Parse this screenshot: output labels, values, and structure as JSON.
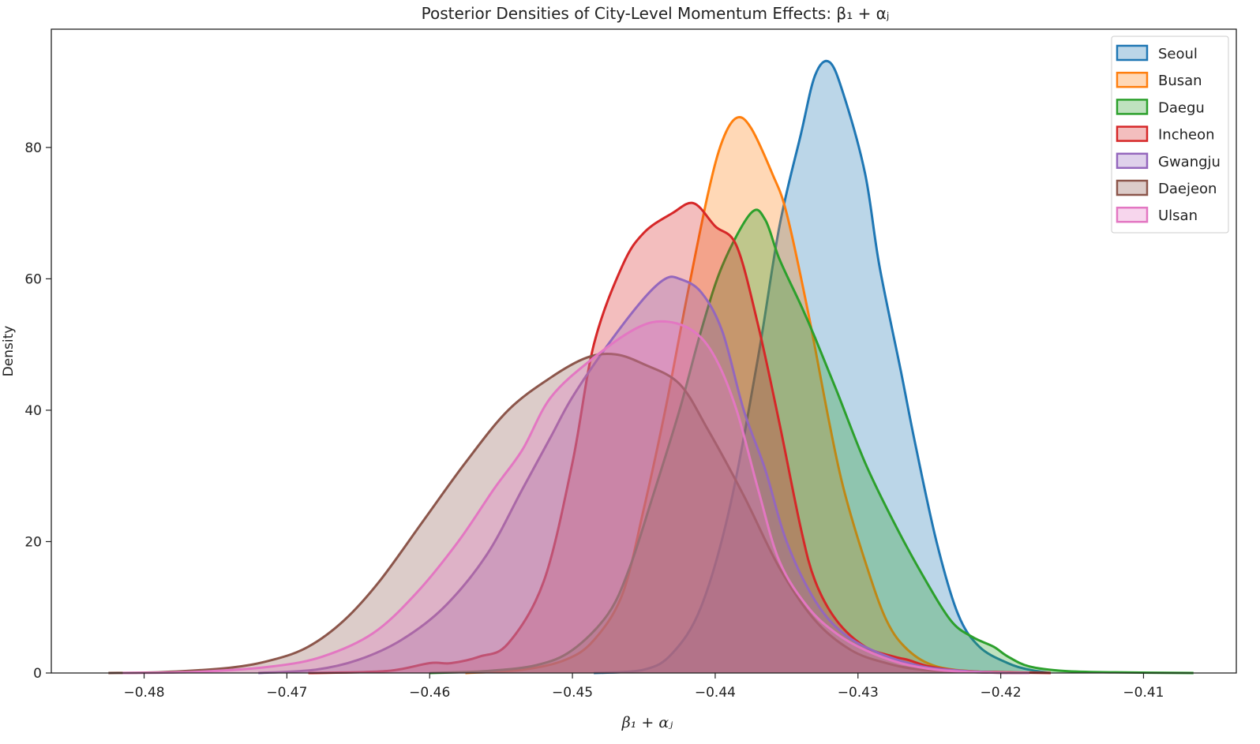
{
  "chart_data": {
    "type": "area",
    "title": "Posterior Densities of City-Level Momentum Effects: β₁ + αⱼ",
    "xlabel": "β₁ + αⱼ",
    "ylabel": "Density",
    "xlim": [
      -0.4865,
      -0.4035
    ],
    "ylim": [
      0,
      98
    ],
    "xticks": [
      -0.48,
      -0.47,
      -0.46,
      -0.45,
      -0.44,
      -0.43,
      -0.42,
      -0.41
    ],
    "xtick_labels": [
      "−0.48",
      "−0.47",
      "−0.46",
      "−0.45",
      "−0.44",
      "−0.43",
      "−0.42",
      "−0.41"
    ],
    "yticks": [
      0,
      20,
      40,
      60,
      80
    ],
    "ytick_labels": [
      "0",
      "20",
      "40",
      "60",
      "80"
    ],
    "grid": false,
    "legend_position": "top-right",
    "series": [
      {
        "name": "Seoul",
        "color": "#1f77b4",
        "x": [
          -0.4485,
          -0.445,
          -0.443,
          -0.441,
          -0.439,
          -0.437,
          -0.4355,
          -0.434,
          -0.433,
          -0.432,
          -0.431,
          -0.4295,
          -0.4285,
          -0.427,
          -0.426,
          -0.4245,
          -0.423,
          -0.4215,
          -0.4195,
          -0.418,
          -0.4165
        ],
        "y": [
          0,
          0.5,
          3,
          10,
          25,
          48,
          68,
          82,
          91,
          93,
          88,
          76,
          62,
          46,
          35,
          20,
          9,
          4,
          1.5,
          0.5,
          0
        ]
      },
      {
        "name": "Busan",
        "color": "#ff7f0e",
        "x": [
          -0.4575,
          -0.4535,
          -0.4505,
          -0.4485,
          -0.4465,
          -0.445,
          -0.4435,
          -0.442,
          -0.4405,
          -0.4395,
          -0.4385,
          -0.4375,
          -0.436,
          -0.435,
          -0.4335,
          -0.432,
          -0.431,
          -0.4295,
          -0.428,
          -0.4265,
          -0.4245,
          -0.4215,
          -0.4185
        ],
        "y": [
          0,
          0.5,
          2,
          5,
          12,
          25,
          40,
          57,
          73,
          81,
          84.5,
          83,
          76,
          70,
          55,
          38,
          28,
          17,
          8,
          3.5,
          1,
          0.2,
          0
        ]
      },
      {
        "name": "Daegu",
        "color": "#2ca02c",
        "x": [
          -0.46,
          -0.456,
          -0.4525,
          -0.45,
          -0.4475,
          -0.446,
          -0.4445,
          -0.4425,
          -0.441,
          -0.4395,
          -0.4375,
          -0.4365,
          -0.4355,
          -0.434,
          -0.433,
          -0.4315,
          -0.4295,
          -0.4275,
          -0.4255,
          -0.4235,
          -0.422,
          -0.4205,
          -0.4195,
          -0.418,
          -0.4155,
          -0.412,
          -0.4065
        ],
        "y": [
          0,
          0.3,
          1.2,
          3.5,
          9,
          16,
          26,
          40,
          52,
          62,
          70,
          69,
          63,
          56,
          51,
          43,
          32,
          23,
          15,
          8,
          5.5,
          4,
          2.5,
          1,
          0.3,
          0.1,
          0
        ]
      },
      {
        "name": "Incheon",
        "color": "#d62728",
        "x": [
          -0.4685,
          -0.463,
          -0.46,
          -0.4585,
          -0.4565,
          -0.4545,
          -0.452,
          -0.45,
          -0.4485,
          -0.4465,
          -0.445,
          -0.443,
          -0.4415,
          -0.44,
          -0.4385,
          -0.437,
          -0.4355,
          -0.434,
          -0.433,
          -0.4315,
          -0.4295,
          -0.4275,
          -0.4265,
          -0.425,
          -0.4225,
          -0.4195,
          -0.4165
        ],
        "y": [
          0,
          0.3,
          1.5,
          1.5,
          2.5,
          4.5,
          14,
          32,
          50,
          62,
          67,
          70,
          71.5,
          68,
          65,
          53,
          38,
          22,
          14,
          8,
          4,
          2.5,
          2,
          1,
          0.3,
          0.1,
          0
        ]
      },
      {
        "name": "Gwangju",
        "color": "#9467bd",
        "x": [
          -0.472,
          -0.468,
          -0.465,
          -0.462,
          -0.459,
          -0.456,
          -0.4535,
          -0.4515,
          -0.45,
          -0.4475,
          -0.445,
          -0.4435,
          -0.4425,
          -0.441,
          -0.4395,
          -0.438,
          -0.4365,
          -0.435,
          -0.433,
          -0.431,
          -0.4285,
          -0.4255,
          -0.4225,
          -0.4195
        ],
        "y": [
          0,
          0.5,
          2,
          5,
          10,
          18,
          28,
          36,
          42,
          50,
          57,
          60,
          60,
          58,
          52,
          40,
          31,
          20,
          11,
          6,
          3,
          1,
          0.3,
          0
        ]
      },
      {
        "name": "Daejeon",
        "color": "#8c564b",
        "x": [
          -0.4825,
          -0.479,
          -0.474,
          -0.471,
          -0.4685,
          -0.466,
          -0.4635,
          -0.4605,
          -0.4575,
          -0.4545,
          -0.4515,
          -0.449,
          -0.447,
          -0.445,
          -0.4425,
          -0.4405,
          -0.438,
          -0.4355,
          -0.433,
          -0.4305,
          -0.428,
          -0.4255,
          -0.4215,
          -0.418
        ],
        "y": [
          0,
          0.1,
          0.8,
          2,
          4,
          8,
          14,
          23,
          32,
          40,
          45,
          48,
          48.5,
          47,
          44,
          37,
          27,
          16,
          8,
          3.5,
          1.5,
          0.5,
          0.1,
          0
        ]
      },
      {
        "name": "Ulsan",
        "color": "#e377c2",
        "x": [
          -0.4815,
          -0.476,
          -0.471,
          -0.4675,
          -0.464,
          -0.461,
          -0.458,
          -0.4555,
          -0.4535,
          -0.4515,
          -0.4485,
          -0.4455,
          -0.4435,
          -0.4415,
          -0.44,
          -0.4385,
          -0.437,
          -0.4355,
          -0.4335,
          -0.4315,
          -0.4295,
          -0.427,
          -0.4245,
          -0.4215,
          -0.418
        ],
        "y": [
          0,
          0.2,
          1,
          2.5,
          6,
          12,
          20,
          28,
          34,
          42,
          48,
          52.5,
          53.5,
          52,
          48,
          40,
          28,
          17,
          10,
          6,
          3.5,
          1.5,
          0.5,
          0.1,
          0
        ]
      }
    ]
  }
}
